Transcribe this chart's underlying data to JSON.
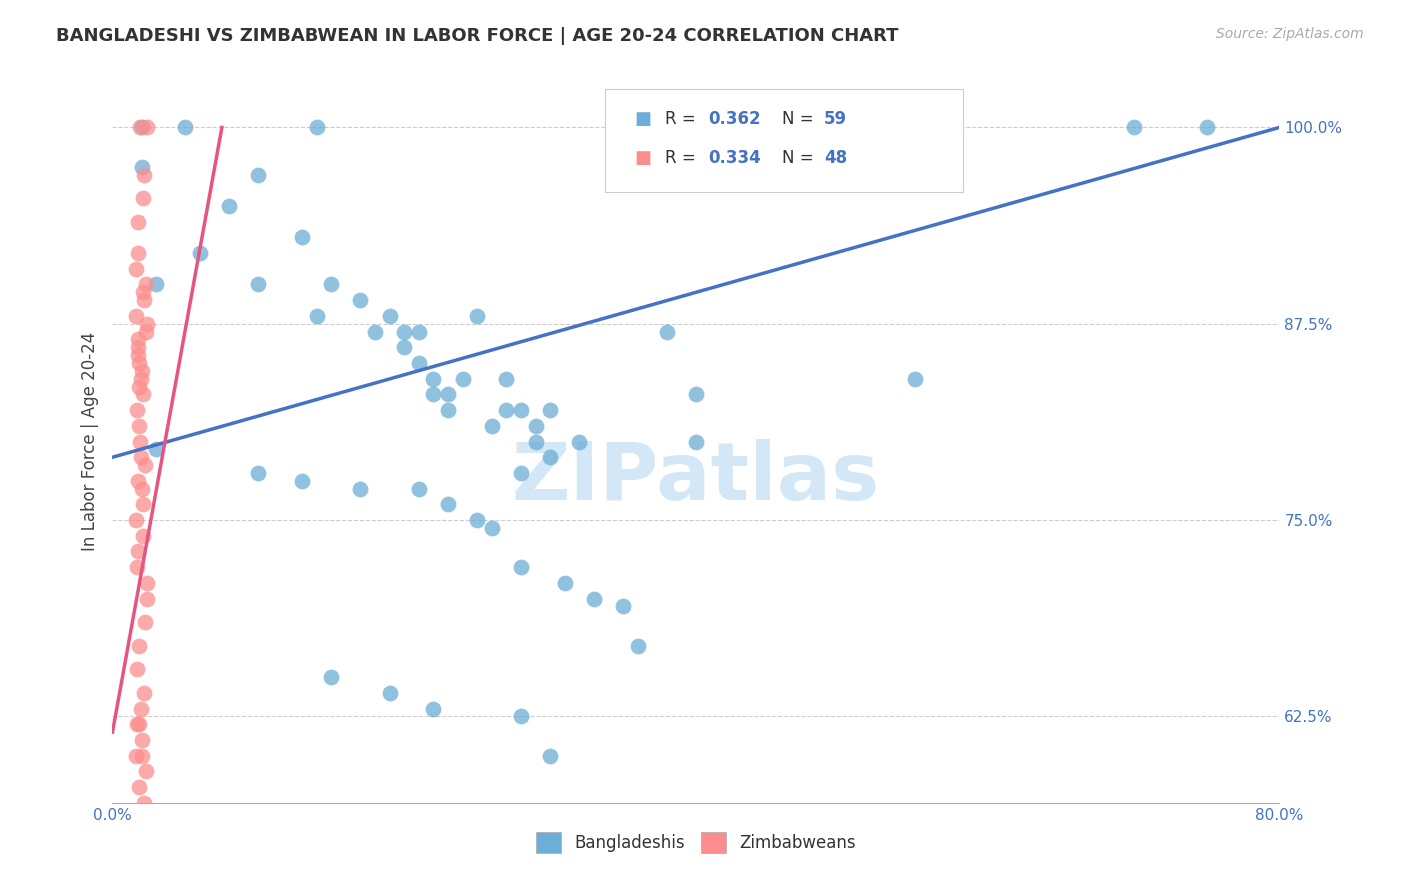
{
  "title": "BANGLADESHI VS ZIMBABWEAN IN LABOR FORCE | AGE 20-24 CORRELATION CHART",
  "source": "Source: ZipAtlas.com",
  "ylabel": "In Labor Force | Age 20-24",
  "xlim": [
    0.0,
    0.8
  ],
  "ylim": [
    0.57,
    1.03
  ],
  "x_ticks": [
    0.0,
    0.1,
    0.2,
    0.3,
    0.4,
    0.5,
    0.6,
    0.7,
    0.8
  ],
  "x_tick_labels": [
    "0.0%",
    "",
    "",
    "",
    "",
    "",
    "",
    "",
    "80.0%"
  ],
  "y_ticks": [
    0.625,
    0.75,
    0.875,
    1.0
  ],
  "y_tick_labels": [
    "62.5%",
    "75.0%",
    "87.5%",
    "100.0%"
  ],
  "blue_color": "#6baed6",
  "pink_color": "#fc8d8d",
  "trend_blue": "#4472c4",
  "trend_pink": "#e75480",
  "watermark_text": "ZIPatlas",
  "blue_dots_x": [
    0.02,
    0.05,
    0.02,
    0.14,
    0.08,
    0.06,
    0.1,
    0.13,
    0.03,
    0.1,
    0.14,
    0.15,
    0.17,
    0.19,
    0.18,
    0.2,
    0.2,
    0.21,
    0.25,
    0.21,
    0.22,
    0.24,
    0.22,
    0.23,
    0.23,
    0.27,
    0.27,
    0.26,
    0.28,
    0.29,
    0.3,
    0.29,
    0.3,
    0.28,
    0.32,
    0.38,
    0.4,
    0.4,
    0.55,
    0.7,
    0.03,
    0.1,
    0.13,
    0.17,
    0.21,
    0.23,
    0.25,
    0.26,
    0.28,
    0.31,
    0.33,
    0.35,
    0.36,
    0.15,
    0.19,
    0.22,
    0.28,
    0.3,
    0.75
  ],
  "blue_dots_y": [
    1.0,
    1.0,
    0.975,
    1.0,
    0.95,
    0.92,
    0.97,
    0.93,
    0.9,
    0.9,
    0.88,
    0.9,
    0.89,
    0.88,
    0.87,
    0.86,
    0.87,
    0.87,
    0.88,
    0.85,
    0.84,
    0.84,
    0.83,
    0.83,
    0.82,
    0.84,
    0.82,
    0.81,
    0.82,
    0.81,
    0.82,
    0.8,
    0.79,
    0.78,
    0.8,
    0.87,
    0.83,
    0.8,
    0.84,
    1.0,
    0.795,
    0.78,
    0.775,
    0.77,
    0.77,
    0.76,
    0.75,
    0.745,
    0.72,
    0.71,
    0.7,
    0.695,
    0.67,
    0.65,
    0.64,
    0.63,
    0.625,
    0.6,
    1.0
  ],
  "pink_dots_x": [
    0.02,
    0.02,
    0.02,
    0.02,
    0.02,
    0.02,
    0.02,
    0.02,
    0.02,
    0.02,
    0.02,
    0.02,
    0.02,
    0.02,
    0.02,
    0.02,
    0.02,
    0.02,
    0.02,
    0.02,
    0.02,
    0.02,
    0.02,
    0.02,
    0.02,
    0.02,
    0.02,
    0.02,
    0.02,
    0.02,
    0.02,
    0.02,
    0.02,
    0.02,
    0.02,
    0.02,
    0.02,
    0.02,
    0.02,
    0.02,
    0.02,
    0.02,
    0.02,
    0.02,
    0.02,
    0.02,
    0.02,
    0.02
  ],
  "pink_dots_y": [
    1.0,
    1.0,
    0.97,
    0.955,
    0.94,
    0.92,
    0.91,
    0.9,
    0.895,
    0.89,
    0.88,
    0.875,
    0.87,
    0.865,
    0.86,
    0.855,
    0.85,
    0.845,
    0.84,
    0.835,
    0.83,
    0.82,
    0.81,
    0.8,
    0.79,
    0.785,
    0.775,
    0.77,
    0.76,
    0.75,
    0.74,
    0.73,
    0.72,
    0.71,
    0.7,
    0.685,
    0.67,
    0.655,
    0.64,
    0.63,
    0.62,
    0.61,
    0.6,
    0.59,
    0.58,
    0.57,
    0.62,
    0.6
  ],
  "blue_trend_x": [
    0.0,
    0.8
  ],
  "blue_trend_y": [
    0.79,
    1.0
  ],
  "pink_trend_x": [
    0.0,
    0.075
  ],
  "pink_trend_y": [
    0.615,
    1.0
  ]
}
